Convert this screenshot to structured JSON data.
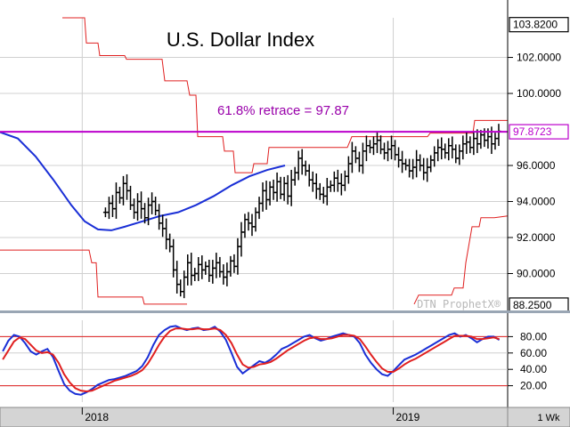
{
  "chart_data": [
    {
      "type": "line",
      "title": "U.S. Dollar Index",
      "annotation": "61.8% retrace = 97.87",
      "watermark": "DTN ProphetX®",
      "ylim": [
        88.0,
        104.2
      ],
      "y_ticks": [
        "102.0000",
        "100.0000",
        "96.0000",
        "94.0000",
        "92.0000",
        "90.0000"
      ],
      "price_labels": [
        {
          "value": 103.82,
          "text": "103.8200",
          "style": "dark"
        },
        {
          "value": 97.8723,
          "text": "97.8723",
          "style": "purple"
        },
        {
          "value": 88.25,
          "text": "88.2500",
          "style": "dark"
        }
      ],
      "retrace_level": 97.87,
      "x_labels": [
        {
          "bar": 23,
          "text": "2018"
        },
        {
          "bar": 110,
          "text": "2019"
        }
      ],
      "period": "1 Wk",
      "colors": {
        "bars": "#000000",
        "moving_average": "#1a2fd6",
        "channel": "#e02020",
        "retrace": "#bb00cc",
        "grid": "#d0d0d0"
      },
      "bar_count": 142,
      "ohlc_closes": [
        93.4,
        93.9,
        93.6,
        94.5,
        94.2,
        95.0,
        94.6,
        93.8,
        93.4,
        94.0,
        93.6,
        93.1,
        93.8,
        94.0,
        93.5,
        92.8,
        92.5,
        91.9,
        91.5,
        90.2,
        89.4,
        89.0,
        89.8,
        90.6,
        89.9,
        90.0,
        90.5,
        90.2,
        90.4,
        89.9,
        90.3,
        90.6,
        90.1,
        89.8,
        90.1,
        90.7,
        90.4,
        91.5,
        92.3,
        93.0,
        92.8,
        92.6,
        93.4,
        93.9,
        94.6,
        94.1,
        94.8,
        94.5,
        95.1,
        94.4,
        95.0,
        94.3,
        95.2,
        95.6,
        96.4,
        96.0,
        95.7,
        95.2,
        95.0,
        94.7,
        94.4,
        94.3,
        94.8,
        94.9,
        95.3,
        95.0,
        94.9,
        95.4,
        96.1,
        96.8,
        96.4,
        96.0,
        96.8,
        97.1,
        97.0,
        97.2,
        97.4,
        96.9,
        96.7,
        96.9,
        97.1,
        96.6,
        96.3,
        96.1,
        96.0,
        95.7,
        95.9,
        96.3,
        96.0,
        95.6,
        95.9,
        96.3,
        96.7,
        97.0,
        96.9,
        96.7,
        97.1,
        96.9,
        96.4,
        96.8,
        97.2,
        97.3,
        97.0,
        97.5,
        97.2,
        97.7,
        97.4,
        97.6,
        97.2,
        97.5,
        97.9
      ],
      "moving_average_path": [
        [
          0,
          97.85
        ],
        [
          20,
          97.5
        ],
        [
          40,
          96.5
        ],
        [
          60,
          95.2
        ],
        [
          80,
          93.8
        ],
        [
          95,
          92.9
        ],
        [
          110,
          92.45
        ],
        [
          125,
          92.4
        ],
        [
          140,
          92.6
        ],
        [
          160,
          92.9
        ],
        [
          180,
          93.2
        ],
        [
          200,
          93.4
        ],
        [
          220,
          93.8
        ],
        [
          240,
          94.3
        ],
        [
          260,
          94.9
        ],
        [
          280,
          95.4
        ],
        [
          300,
          95.75
        ],
        [
          320,
          96.0
        ]
      ],
      "channel_upper_path": [
        [
          70,
          104.2
        ],
        [
          95,
          104.2
        ],
        [
          97,
          102.8
        ],
        [
          110,
          102.8
        ],
        [
          112,
          102.1
        ],
        [
          140,
          102.1
        ],
        [
          142,
          101.9
        ],
        [
          182,
          101.9
        ],
        [
          185,
          100.7
        ],
        [
          210,
          100.7
        ],
        [
          213,
          99.9
        ],
        [
          220,
          99.9
        ],
        [
          222,
          97.6
        ],
        [
          250,
          97.6
        ],
        [
          252,
          96.8
        ],
        [
          262,
          96.8
        ],
        [
          264,
          95.6
        ],
        [
          283,
          95.6
        ],
        [
          285,
          96.1
        ],
        [
          300,
          96.1
        ],
        [
          302,
          97.0
        ],
        [
          390,
          97.0
        ],
        [
          395,
          97.6
        ],
        [
          480,
          97.6
        ],
        [
          483,
          97.8
        ],
        [
          531,
          97.8
        ],
        [
          533,
          98.5
        ],
        [
          570,
          98.5
        ]
      ],
      "channel_lower_path": [
        [
          0,
          91.3
        ],
        [
          100,
          91.3
        ],
        [
          103,
          90.6
        ],
        [
          108,
          90.6
        ],
        [
          110,
          88.7
        ],
        [
          160,
          88.7
        ],
        [
          162,
          88.3
        ],
        [
          210,
          88.3
        ]
      ],
      "channel_lower_right_path": [
        [
          465,
          88.3
        ],
        [
          470,
          88.8
        ],
        [
          507,
          88.8
        ],
        [
          510,
          89.2
        ],
        [
          520,
          89.2
        ],
        [
          523,
          90.6
        ],
        [
          530,
          92.6
        ],
        [
          538,
          92.6
        ],
        [
          540,
          93.1
        ],
        [
          555,
          93.1
        ],
        [
          570,
          93.2
        ]
      ]
    },
    {
      "type": "line",
      "title": "",
      "ylim": [
        0,
        100
      ],
      "y_ticks": [
        "80.00",
        "60.00",
        "40.00",
        "20.00"
      ],
      "reference_lines": [
        80,
        20
      ],
      "series": [
        {
          "color": "#1a2fd6",
          "values": [
            62,
            75,
            82,
            80,
            72,
            62,
            58,
            62,
            65,
            55,
            38,
            22,
            14,
            10,
            9,
            12,
            16,
            21,
            24,
            27,
            28,
            30,
            32,
            35,
            38,
            44,
            55,
            70,
            82,
            88,
            92,
            93,
            90,
            88,
            90,
            91,
            88,
            89,
            92,
            86,
            76,
            60,
            43,
            35,
            40,
            45,
            50,
            48,
            52,
            58,
            65,
            68,
            72,
            76,
            80,
            82,
            78,
            75,
            77,
            80,
            82,
            84,
            82,
            80,
            72,
            58,
            48,
            40,
            34,
            32,
            38,
            45,
            52,
            55,
            58,
            62,
            66,
            70,
            74,
            78,
            82,
            84,
            80,
            82,
            78,
            73,
            77,
            80,
            80,
            76
          ]
        },
        {
          "color": "#e02020",
          "values": [
            52,
            63,
            74,
            79,
            77,
            70,
            63,
            60,
            61,
            58,
            48,
            34,
            24,
            17,
            14,
            13,
            14,
            17,
            20,
            23,
            26,
            28,
            30,
            32,
            35,
            39,
            47,
            58,
            70,
            80,
            87,
            90,
            90,
            89,
            89,
            90,
            89,
            89,
            90,
            88,
            82,
            72,
            58,
            46,
            42,
            43,
            46,
            47,
            49,
            53,
            58,
            63,
            67,
            71,
            75,
            78,
            79,
            77,
            77,
            78,
            80,
            82,
            82,
            81,
            77,
            68,
            58,
            49,
            41,
            37,
            37,
            41,
            46,
            50,
            53,
            57,
            61,
            65,
            69,
            73,
            77,
            81,
            81,
            81,
            80,
            77,
            77,
            78,
            79,
            77
          ]
        }
      ]
    }
  ]
}
